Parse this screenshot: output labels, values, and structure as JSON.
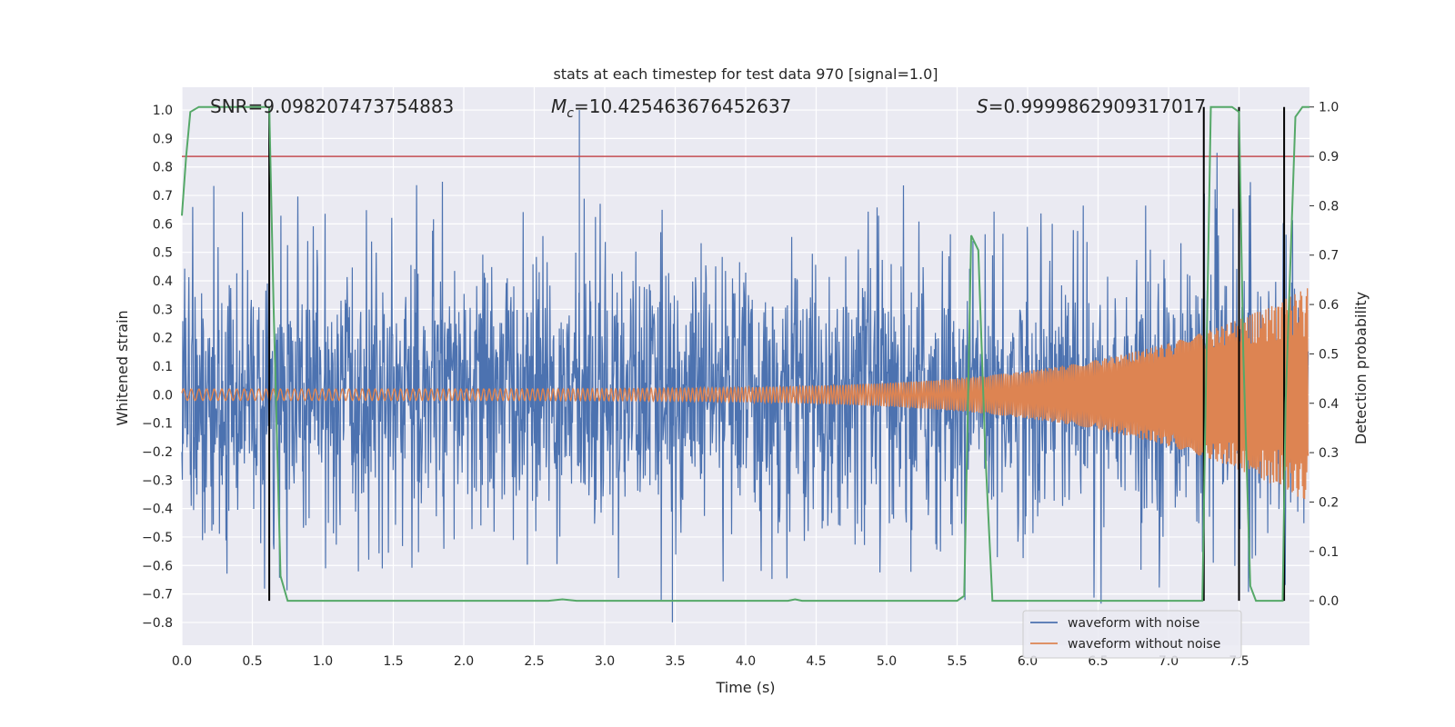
{
  "chart_data": {
    "type": "line",
    "title": "stats at each timestep for test data 970 [signal=1.0]",
    "xlabel": "Time (s)",
    "ylabel_left": "Whitened strain",
    "ylabel_right": "Detection probability",
    "xlim": [
      0.0,
      8.0
    ],
    "ylim_left": [
      -0.88,
      1.08
    ],
    "ylim_right": [
      -0.09,
      1.04
    ],
    "x_ticks": [
      "0.0",
      "0.5",
      "1.0",
      "1.5",
      "2.0",
      "2.5",
      "3.0",
      "3.5",
      "4.0",
      "4.5",
      "5.0",
      "5.5",
      "6.0",
      "6.5",
      "7.0",
      "7.5"
    ],
    "x_tick_values": [
      0.0,
      0.5,
      1.0,
      1.5,
      2.0,
      2.5,
      3.0,
      3.5,
      4.0,
      4.5,
      5.0,
      5.5,
      6.0,
      6.5,
      7.0,
      7.5
    ],
    "y_left_ticks": [
      "1.0",
      "0.9",
      "0.8",
      "0.7",
      "0.6",
      "0.5",
      "0.4",
      "0.3",
      "0.2",
      "0.1",
      "0.0",
      "−0.1",
      "−0.2",
      "−0.3",
      "−0.4",
      "−0.5",
      "−0.6",
      "−0.7",
      "−0.8"
    ],
    "y_left_tick_values": [
      1.0,
      0.9,
      0.8,
      0.7,
      0.6,
      0.5,
      0.4,
      0.3,
      0.2,
      0.1,
      0.0,
      -0.1,
      -0.2,
      -0.3,
      -0.4,
      -0.5,
      -0.6,
      -0.7,
      -0.8
    ],
    "y_right_ticks": [
      "1.0",
      "0.9",
      "0.8",
      "0.7",
      "0.6",
      "0.5",
      "0.4",
      "0.3",
      "0.2",
      "0.1",
      "0.0"
    ],
    "y_right_tick_values": [
      1.0,
      0.9,
      0.8,
      0.7,
      0.6,
      0.5,
      0.4,
      0.3,
      0.2,
      0.1,
      0.0
    ],
    "annotations": {
      "snr": "SNR=9.098207473754883",
      "mc_symbol": "M",
      "mc_sub": "c",
      "mc_value": "=10.425463676452637",
      "s_symbol": "S",
      "s_value": "=0.9999862909317017"
    },
    "threshold": {
      "value": 0.9,
      "axis": "right",
      "color": "#c44e52"
    },
    "vertical_markers": [
      0.62,
      7.25,
      7.5,
      7.82
    ],
    "detection_probability": {
      "x": [
        0.0,
        0.03,
        0.06,
        0.12,
        0.2,
        0.3,
        0.4,
        0.5,
        0.6,
        0.62,
        0.65,
        0.7,
        0.75,
        0.9,
        1.5,
        2.0,
        2.5,
        2.6,
        2.7,
        2.8,
        3.5,
        4.0,
        4.3,
        4.35,
        4.4,
        5.0,
        5.5,
        5.55,
        5.6,
        5.65,
        5.7,
        5.75,
        6.0,
        6.5,
        7.0,
        7.24,
        7.26,
        7.3,
        7.35,
        7.45,
        7.5,
        7.53,
        7.58,
        7.62,
        7.7,
        7.81,
        7.83,
        7.9,
        7.95,
        8.0
      ],
      "y": [
        0.78,
        0.9,
        0.99,
        1.0,
        1.0,
        1.0,
        1.0,
        1.0,
        1.0,
        1.0,
        0.6,
        0.05,
        0.0,
        0.0,
        0.0,
        0.0,
        0.0,
        0.0,
        0.003,
        0.0,
        0.0,
        0.0,
        0.0,
        0.003,
        0.0,
        0.0,
        0.0,
        0.01,
        0.74,
        0.71,
        0.3,
        0.0,
        0.0,
        0.0,
        0.0,
        0.0,
        0.35,
        1.0,
        1.0,
        1.0,
        0.99,
        0.5,
        0.03,
        0.0,
        0.0,
        0.0,
        0.4,
        0.98,
        1.0,
        1.0
      ],
      "color": "#55a868"
    },
    "series": [
      {
        "name": "waveform with noise",
        "color": "#4c72b0",
        "noise_amplitude": 0.45,
        "peak_max": 1.0,
        "peak_min": -0.8,
        "n_points": 2400
      },
      {
        "name": "waveform without noise",
        "color": "#dd8452",
        "start_amplitude": 0.02,
        "end_amplitude": 0.38,
        "chirp": true
      }
    ],
    "legend_position": "lower-right",
    "grid": true
  },
  "colors": {
    "axes_bg": "#eaeaf2",
    "grid": "#ffffff",
    "marker": "#000000"
  }
}
